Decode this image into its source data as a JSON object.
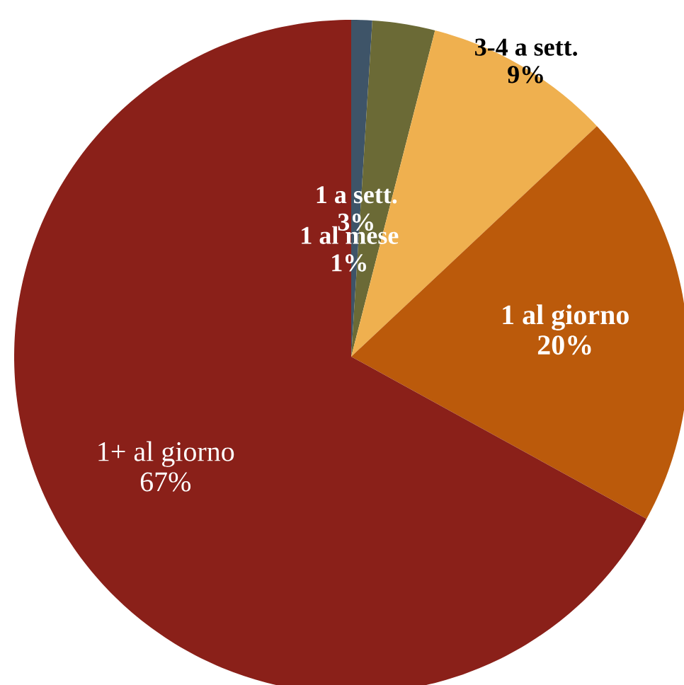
{
  "chart_data": {
    "type": "pie",
    "categories": [
      "1 al mese",
      "1 a sett.",
      "3-4 a sett.",
      "1 al giorno",
      "1+ al giorno"
    ],
    "values": [
      1,
      3,
      9,
      20,
      67
    ],
    "colors": [
      "#3e5468",
      "#6b6a36",
      "#efb04f",
      "#bb5a0b",
      "#8a2019"
    ],
    "value_labels": [
      "1%",
      "3%",
      "9%",
      "20%",
      "67%"
    ]
  }
}
